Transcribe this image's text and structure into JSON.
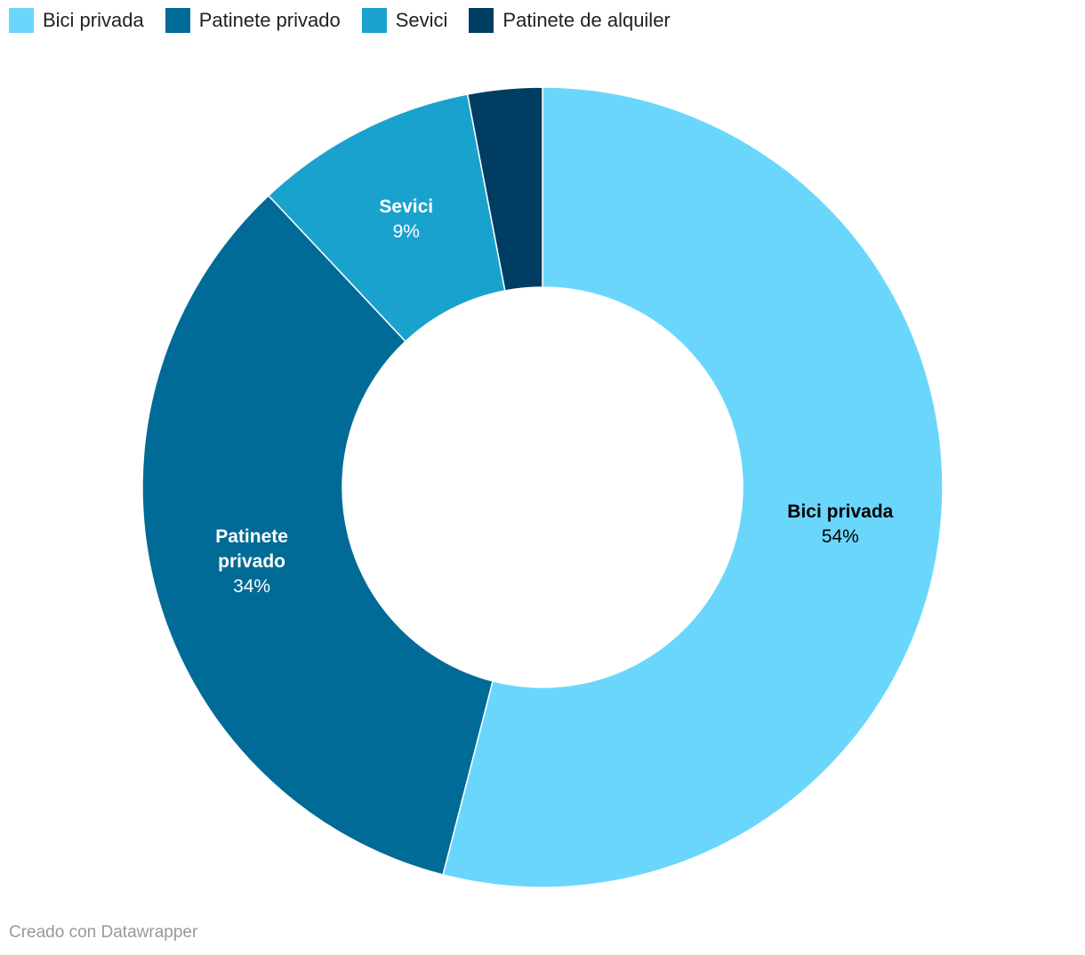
{
  "chart_data": {
    "type": "donut",
    "categories": [
      "Bici privada",
      "Patinete privado",
      "Sevici",
      "Patinete de alquiler"
    ],
    "values": [
      54,
      34,
      9,
      3
    ],
    "value_labels": [
      "54%",
      "34%",
      "9%",
      null
    ],
    "colors": [
      "#6ad6fc",
      "#006b96",
      "#1aa2ce",
      "#003d62"
    ],
    "legend": "top-left",
    "credit": "Creado con Datawrapper"
  }
}
